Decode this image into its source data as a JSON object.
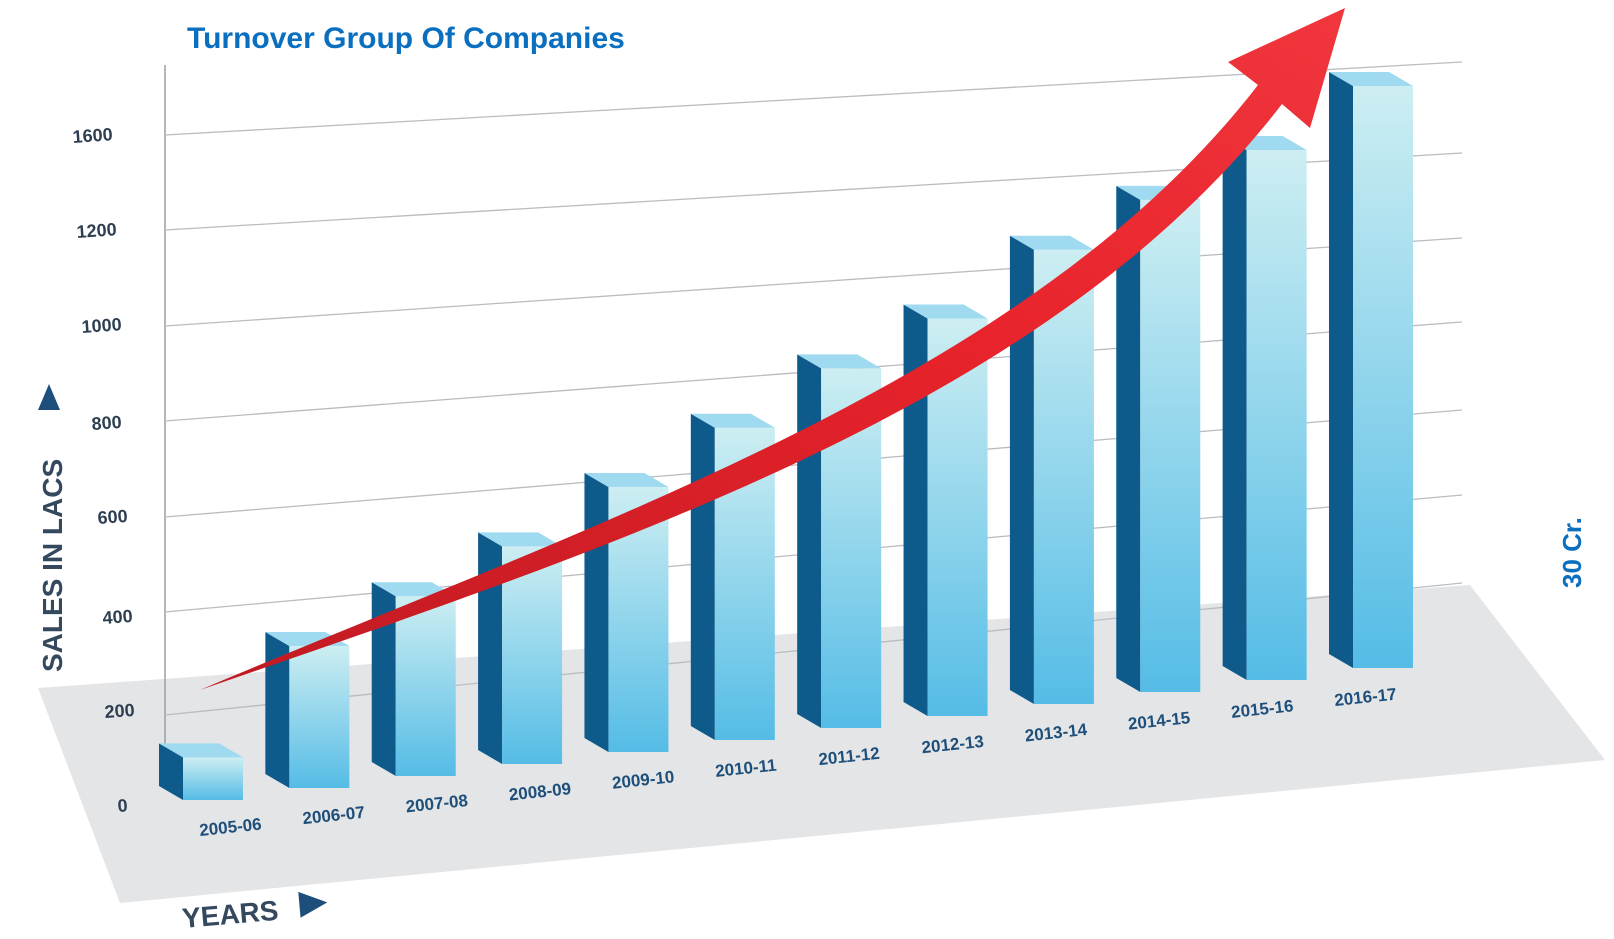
{
  "chart_data": {
    "type": "bar",
    "title": "Turnover Group Of Companies",
    "xlabel": "YEARS",
    "ylabel": "SALES IN LACS",
    "side_note": "30 Cr.",
    "categories": [
      "2005-06",
      "2006-07",
      "2007-08",
      "2008-09",
      "2009-10",
      "2010-11",
      "2011-12",
      "2012-13",
      "2013-14",
      "2014-15",
      "2015-16",
      "2016-17"
    ],
    "values": [
      90,
      300,
      380,
      460,
      560,
      660,
      760,
      840,
      960,
      1040,
      1120,
      1230
    ],
    "yticks": [
      "0",
      "200",
      "400",
      "600",
      "800",
      "1000",
      "1200",
      "1600"
    ],
    "grid": true,
    "trend_arrow": true,
    "colors": {
      "bar_front_top": "#c9ecf1",
      "bar_front_bottom": "#58bde6",
      "bar_side": "#0e5a8a",
      "bar_top": "#9fdaf0",
      "arrow": "#e8232b",
      "floor": "#e6e6e8"
    }
  }
}
